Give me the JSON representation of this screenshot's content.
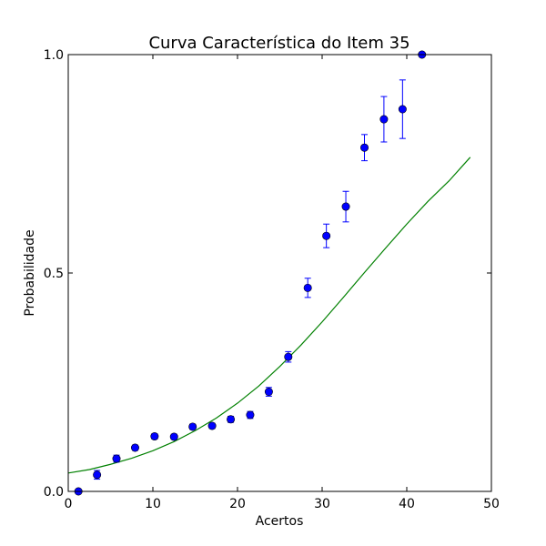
{
  "chart_data": {
    "type": "scatter",
    "title": "Curva Característica do Item 35",
    "xlabel": "Acertos",
    "ylabel": "Probabilidade",
    "xlim": [
      0,
      50
    ],
    "ylim": [
      0.0,
      1.0
    ],
    "x_ticks": [
      0,
      10,
      20,
      30,
      40,
      50
    ],
    "x_tick_labels": [
      "0",
      "10",
      "20",
      "30",
      "40",
      "50"
    ],
    "y_ticks": [
      0.0,
      0.5,
      1.0
    ],
    "y_tick_labels": [
      "0.0",
      "0.5",
      "1.0"
    ],
    "grid": false,
    "colors": {
      "points": "#0000ff",
      "curve": "#008000"
    },
    "series": [
      {
        "kind": "points_with_errorbars",
        "x": [
          1.2,
          3.4,
          5.7,
          7.9,
          10.2,
          12.5,
          14.7,
          17.0,
          19.2,
          21.5,
          23.7,
          26.0,
          28.3,
          30.5,
          32.8,
          35.0,
          37.3,
          39.5,
          41.8
        ],
        "y": [
          0.0,
          0.038,
          0.075,
          0.1,
          0.126,
          0.125,
          0.148,
          0.15,
          0.165,
          0.175,
          0.228,
          0.308,
          0.466,
          0.585,
          0.652,
          0.787,
          0.852,
          0.875,
          1.0
        ],
        "err": [
          0.0,
          0.01,
          0.008,
          0.006,
          0.006,
          0.006,
          0.006,
          0.006,
          0.007,
          0.008,
          0.01,
          0.012,
          0.022,
          0.027,
          0.035,
          0.03,
          0.052,
          0.067,
          0.0
        ]
      },
      {
        "kind": "curve",
        "x": [
          0,
          2.5,
          5,
          7.5,
          10,
          12.5,
          15,
          17.5,
          20,
          22.5,
          25,
          27.5,
          30,
          32.5,
          35,
          37.5,
          40,
          42.5,
          45,
          47.5
        ],
        "y": [
          0.042,
          0.05,
          0.062,
          0.076,
          0.093,
          0.114,
          0.139,
          0.168,
          0.202,
          0.241,
          0.286,
          0.335,
          0.388,
          0.444,
          0.501,
          0.557,
          0.612,
          0.664,
          0.711,
          0.765
        ]
      }
    ]
  }
}
